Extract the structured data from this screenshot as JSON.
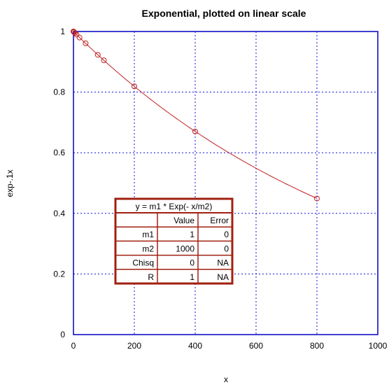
{
  "chart_data": {
    "type": "scatter",
    "title": "Exponential, plotted on linear scale",
    "xlabel": "x",
    "ylabel": "exp-.1x",
    "xlim": [
      0,
      1000
    ],
    "ylim": [
      0,
      1
    ],
    "x_ticks": [
      "0",
      "200",
      "400",
      "600",
      "800",
      "1000"
    ],
    "y_ticks": [
      "0",
      "0.2",
      "0.4",
      "0.6",
      "0.8",
      "1"
    ],
    "grid": true,
    "points": {
      "x": [
        0,
        1,
        2,
        5,
        10,
        20,
        40,
        80,
        100,
        200,
        400,
        800
      ],
      "y": [
        1.0,
        0.999,
        0.998,
        0.995,
        0.99,
        0.98,
        0.961,
        0.923,
        0.905,
        0.819,
        0.67,
        0.449
      ]
    },
    "fit_curve": "y = m1 * Exp(- x/m2)",
    "colors": {
      "frame": "#0000c0",
      "grid": "#1010e0",
      "points": "#c02020",
      "box_border": "#a02010"
    },
    "fit_table": {
      "equation": "y = m1 * Exp(- x/m2)",
      "headers": [
        "",
        "Value",
        "Error"
      ],
      "rows": [
        [
          "m1",
          "1",
          "0"
        ],
        [
          "m2",
          "1000",
          "0"
        ],
        [
          "Chisq",
          "0",
          "NA"
        ],
        [
          "R",
          "1",
          "NA"
        ]
      ]
    }
  }
}
